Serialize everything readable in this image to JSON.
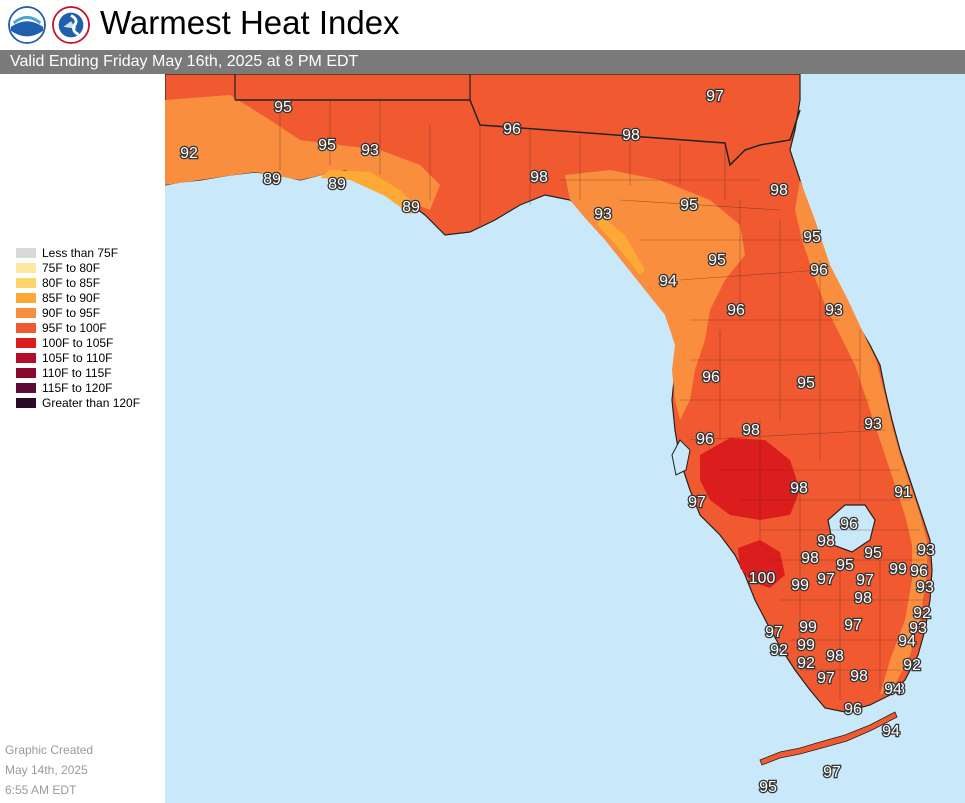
{
  "title": "Warmest Heat Index",
  "subtitle": "Valid Ending Friday May 16th, 2025 at 8 PM EDT",
  "logos": [
    {
      "name": "noaa-logo",
      "text": "NOAA",
      "color": "#1f5fae"
    },
    {
      "name": "nws-logo",
      "text": "NATIONAL WEATHER SERVICE",
      "color": "#1f5fae"
    }
  ],
  "legend": [
    {
      "label": "Less than 75F",
      "color": "#d9d9d9"
    },
    {
      "label": "75F to 80F",
      "color": "#fde9a0"
    },
    {
      "label": "80F to 85F",
      "color": "#fdd36c"
    },
    {
      "label": "85F to 90F",
      "color": "#fcaa35"
    },
    {
      "label": "90F to 95F",
      "color": "#f98e3f"
    },
    {
      "label": "95F to 100F",
      "color": "#f15a31"
    },
    {
      "label": "100F to 105F",
      "color": "#dc1d1d"
    },
    {
      "label": "105F to 110F",
      "color": "#b40d2c"
    },
    {
      "label": "110F to 115F",
      "color": "#870a2d"
    },
    {
      "label": "115F to 120F",
      "color": "#5e0a3a"
    },
    {
      "label": "Greater than 120F",
      "color": "#2a0a26"
    }
  ],
  "footer": {
    "line1": "Graphic Created",
    "line2": "May 14th, 2025",
    "line3": "6:55 AM EDT"
  },
  "colors": {
    "water": "#c9e9fb",
    "land_95_100": "#f15a31",
    "land_90_95": "#f98e3f",
    "land_100_105": "#dc1d1d",
    "land_85_90": "#fcaa35",
    "header_bar": "#7a7a7a"
  },
  "map_values": [
    "97",
    "95",
    "96",
    "98",
    "92",
    "95",
    "93",
    "89",
    "89",
    "98",
    "89",
    "93",
    "95",
    "98",
    "95",
    "95",
    "96",
    "94",
    "96",
    "93",
    "96",
    "95",
    "93",
    "96",
    "98",
    "97",
    "98",
    "91",
    "96",
    "98",
    "98",
    "95",
    "95",
    "99",
    "96",
    "93",
    "100",
    "99",
    "97",
    "97",
    "98",
    "93",
    "92",
    "99",
    "97",
    "97",
    "98",
    "93",
    "92",
    "99",
    "94",
    "92",
    "98",
    "92",
    "97",
    "98",
    "94",
    "97",
    "96",
    "95",
    "94"
  ]
}
